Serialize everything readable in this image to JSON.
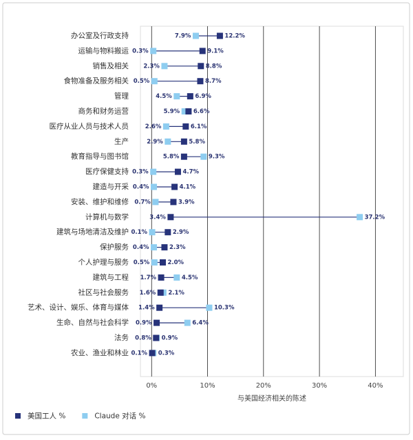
{
  "chart_data": {
    "type": "dumbbell",
    "x_label": "与美国经济相关的陈述",
    "categories": [
      "办公室及行政支持",
      "运输与物料搬运",
      "销售及相关",
      "食物准备及服务相关",
      "管理",
      "商务和财务运营",
      "医疗从业人员与技术人员",
      "生产",
      "教育指导与图书馆",
      "医疗保健支持",
      "建造与开采",
      "安装、维护和维修",
      "计算机与数学",
      "建筑与场地清洁及维护",
      "保护服务",
      "个人护理与服务",
      "建筑与工程",
      "社区与社会服务",
      "艺术、设计、娱乐、体育与媒体",
      "生命、自然与社会科学",
      "法务",
      "农业、渔业和林业"
    ],
    "series": [
      {
        "name": "美国工人 %",
        "color": "#27337a",
        "values": [
          12.2,
          9.1,
          8.8,
          8.7,
          6.9,
          6.6,
          6.1,
          5.8,
          5.8,
          4.7,
          4.1,
          3.9,
          3.4,
          2.9,
          2.3,
          2.0,
          1.7,
          1.6,
          1.4,
          0.9,
          0.8,
          0.1
        ],
        "value_labels": [
          "12.2%",
          "9.1%",
          "8.8%",
          "8.7%",
          "6.9%",
          "6.6%",
          "6.1%",
          "5.8%",
          "5.8%",
          "4.7%",
          "4.1%",
          "3.9%",
          "3.4%",
          "2.9%",
          "2.3%",
          "2.0%",
          "1.7%",
          "1.6%",
          "1.4%",
          "0.9%",
          "0.8%",
          "0.1%"
        ]
      },
      {
        "name": "Claude 对话 %",
        "color": "#8ecdf0",
        "values": [
          7.9,
          0.3,
          2.3,
          0.5,
          4.5,
          5.9,
          2.6,
          2.9,
          9.3,
          0.3,
          0.4,
          0.7,
          37.2,
          0.1,
          0.4,
          0.5,
          4.5,
          2.1,
          10.3,
          6.4,
          0.9,
          0.3
        ],
        "value_labels": [
          "7.9%",
          "0.3%",
          "2.3%",
          "0.5%",
          "4.5%",
          "5.9%",
          "2.6%",
          "2.9%",
          "9.3%",
          "0.3%",
          "0.4%",
          "0.7%",
          "37.2%",
          "0.1%",
          "0.4%",
          "0.5%",
          "4.5%",
          "2.1%",
          "10.3%",
          "6.4%",
          "0.9%",
          "0.3%"
        ]
      }
    ],
    "xlim": [
      -2,
      45
    ],
    "xticks": [
      {
        "value": 0,
        "label": "0%"
      },
      {
        "value": 10,
        "label": "10%"
      },
      {
        "value": 20,
        "label": "20%"
      },
      {
        "value": 30,
        "label": "30%"
      },
      {
        "value": 40,
        "label": "40%"
      }
    ],
    "grid": true,
    "legend": "bottom-left"
  }
}
